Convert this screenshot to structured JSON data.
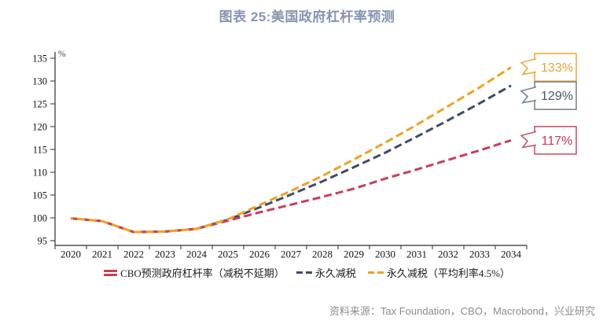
{
  "title": {
    "text": "图表 25:美国政府杠杆率预测",
    "color": "#8595B2"
  },
  "chart_data": {
    "type": "line",
    "x": [
      2020,
      2021,
      2022,
      2023,
      2024,
      2025,
      2026,
      2027,
      2028,
      2029,
      2030,
      2031,
      2032,
      2033,
      2034
    ],
    "ylabel": "%",
    "ylim": [
      95,
      135
    ],
    "ytick_step": 5,
    "grid": false,
    "legend_position": "bottom",
    "series": [
      {
        "name": "CBO预测政府杠杆率（减税不延期）",
        "color": "#C83F58",
        "dash_style": "double-dash",
        "values": [
          99.9,
          99.3,
          96.9,
          97.0,
          97.6,
          99.4,
          101.2,
          102.9,
          104.6,
          106.4,
          108.6,
          110.6,
          112.7,
          114.8,
          117.0
        ]
      },
      {
        "name": "永久减税",
        "color": "#3C4C6E",
        "dash_style": "dash",
        "values": [
          99.9,
          99.3,
          96.9,
          97.0,
          97.6,
          99.6,
          102.3,
          105.1,
          108.0,
          111.1,
          114.3,
          117.8,
          121.4,
          125.1,
          129.0
        ]
      },
      {
        "name": "永久减税（平均利率4.5%）",
        "color": "#F0A21F",
        "dash_style": "dash",
        "values": [
          99.9,
          99.3,
          96.9,
          97.0,
          97.6,
          99.7,
          102.8,
          105.9,
          109.2,
          112.8,
          116.5,
          120.4,
          124.5,
          128.6,
          133.0
        ]
      }
    ],
    "callouts": [
      {
        "label": "133%",
        "value": 133,
        "color": "#F2AB3D",
        "text_color": "#E9A136"
      },
      {
        "label": "129%",
        "value": 129,
        "color": "#76859D",
        "text_color": "#46566F"
      },
      {
        "label": "117%",
        "value": 117,
        "color": "#C8566C",
        "text_color": "#C13A55"
      }
    ]
  },
  "source": {
    "text": "资料来源：Tax Foundation，CBO，Macrobond，兴业研究"
  }
}
